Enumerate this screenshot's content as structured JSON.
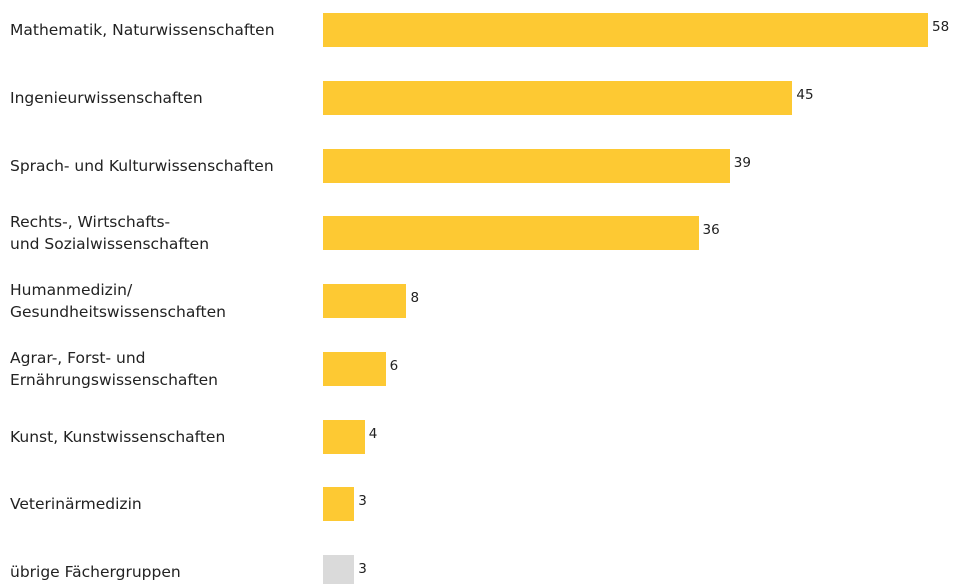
{
  "chart_data": {
    "type": "bar",
    "orientation": "horizontal",
    "categories": [
      "Mathematik, Naturwissenschaften",
      "Ingenieurwissenschaften",
      "Sprach- und Kulturwissenschaften",
      "Rechts-, Wirtschafts-\nund Sozialwissenschaften",
      "Humanmedizin/\nGesundheitswissenschaften",
      "Agrar-, Forst- und\nErnährungswissenschaften",
      "Kunst, Kunstwissenschaften",
      "Veterinärmedizin",
      "übrige Fächergruppen"
    ],
    "values": [
      58,
      45,
      39,
      36,
      8,
      6,
      4,
      3,
      3
    ],
    "colors": [
      "#fdc933",
      "#fdc933",
      "#fdc933",
      "#fdc933",
      "#fdc933",
      "#fdc933",
      "#fdc933",
      "#fdc933",
      "#dadada"
    ]
  }
}
